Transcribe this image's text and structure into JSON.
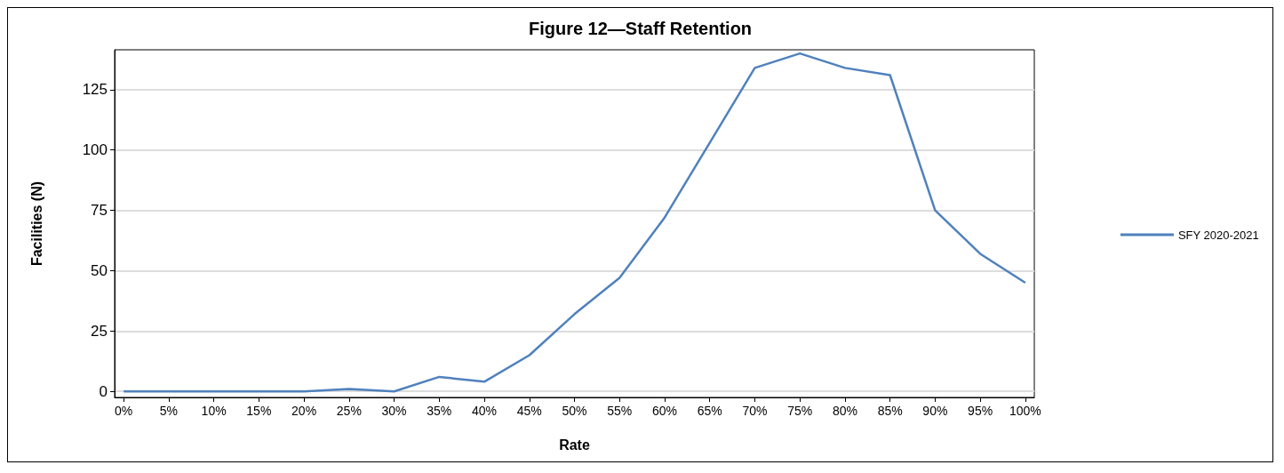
{
  "chart_data": {
    "type": "line",
    "title": "Figure 12—Staff Retention",
    "xlabel": "Rate",
    "ylabel": "Facilities (N)",
    "x": [
      0,
      5,
      10,
      15,
      20,
      25,
      30,
      35,
      40,
      45,
      50,
      55,
      60,
      65,
      70,
      75,
      80,
      85,
      90,
      95,
      100
    ],
    "series": [
      {
        "name": "SFY 2020-2021",
        "color": "#4f81bd",
        "values": [
          0,
          0,
          0,
          0,
          0,
          1,
          0,
          6,
          4,
          15,
          32,
          47,
          72,
          103,
          134,
          140,
          134,
          131,
          75,
          57,
          45
        ]
      }
    ],
    "xlim": [
      -1,
      101
    ],
    "xticks": [
      {
        "value": 0,
        "label": "0%"
      },
      {
        "value": 5,
        "label": "5%"
      },
      {
        "value": 10,
        "label": "10%"
      },
      {
        "value": 15,
        "label": "15%"
      },
      {
        "value": 20,
        "label": "20%"
      },
      {
        "value": 25,
        "label": "25%"
      },
      {
        "value": 30,
        "label": "30%"
      },
      {
        "value": 35,
        "label": "35%"
      },
      {
        "value": 40,
        "label": "40%"
      },
      {
        "value": 45,
        "label": "45%"
      },
      {
        "value": 50,
        "label": "50%"
      },
      {
        "value": 55,
        "label": "55%"
      },
      {
        "value": 60,
        "label": "60%"
      },
      {
        "value": 65,
        "label": "65%"
      },
      {
        "value": 70,
        "label": "70%"
      },
      {
        "value": 75,
        "label": "75%"
      },
      {
        "value": 80,
        "label": "80%"
      },
      {
        "value": 85,
        "label": "85%"
      },
      {
        "value": 90,
        "label": "90%"
      },
      {
        "value": 95,
        "label": "95%"
      },
      {
        "value": 100,
        "label": "100%"
      }
    ],
    "ylim": [
      -2.5,
      141.5
    ],
    "yticks": [
      0,
      25,
      50,
      75,
      100,
      125
    ],
    "grid": "y",
    "legend": "right",
    "marker": "none",
    "line_style": "solid"
  }
}
